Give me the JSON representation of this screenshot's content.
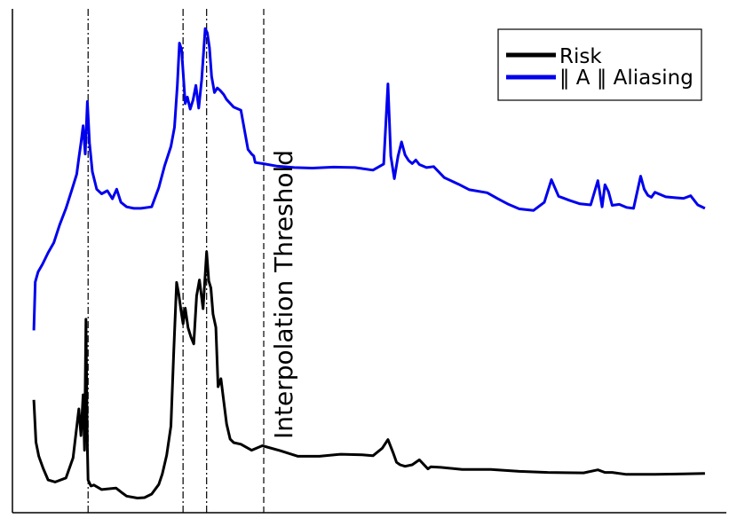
{
  "chart_data": {
    "type": "line",
    "title": "",
    "xlabel": "",
    "ylabel": "",
    "xlim": [
      0,
      100
    ],
    "ylim": [
      0,
      100
    ],
    "grid": false,
    "axes_visible": [
      "left",
      "bottom"
    ],
    "ticks_visible": false,
    "legend": {
      "placement": "top-right",
      "entries": [
        {
          "label": "Risk",
          "color": "#000000"
        },
        {
          "label": "‖ A ‖  Aliasing",
          "color": "#0000ee"
        }
      ]
    },
    "vlines": [
      {
        "x": 10.6,
        "style": "dashdot",
        "label": ""
      },
      {
        "x": 23.9,
        "style": "dashdot",
        "label": ""
      },
      {
        "x": 27.2,
        "style": "dashdot",
        "label": ""
      },
      {
        "x": 35.2,
        "style": "dashed",
        "label": "Interpolation Threshold"
      }
    ],
    "series": [
      {
        "name": "Risk",
        "color": "#000000",
        "x": [
          3.0,
          3.3,
          3.7,
          4.3,
          5.0,
          6.0,
          7.5,
          8.5,
          9.3,
          9.6,
          9.9,
          10.1,
          10.3,
          10.5,
          10.6,
          10.8,
          11.0,
          11.4,
          12.5,
          14.5,
          15.5,
          16.0,
          17.5,
          18.5,
          19.5,
          20.5,
          21.0,
          21.6,
          22.2,
          22.6,
          23.0,
          23.3,
          23.6,
          23.9,
          24.2,
          24.6,
          25.0,
          25.4,
          25.8,
          26.2,
          26.7,
          27.2,
          27.5,
          27.8,
          28.1,
          28.5,
          28.8,
          29.2,
          29.6,
          30.0,
          30.5,
          31.0,
          32.0,
          33.5,
          35.0,
          37.5,
          40.0,
          43.0,
          46.0,
          49.0,
          50.5,
          51.8,
          52.6,
          53.3,
          53.8,
          54.3,
          55.0,
          56.0,
          57.0,
          57.8,
          58.2,
          58.6,
          60.0,
          63.0,
          67.0,
          71.0,
          75.0,
          80.0,
          82.0,
          83.0,
          84.0,
          86.0,
          90.0,
          94.0,
          97.0
        ],
        "y": [
          22.4,
          14.0,
          11.2,
          8.8,
          6.5,
          6.1,
          6.9,
          10.9,
          20.6,
          15.3,
          23.4,
          12.4,
          38.4,
          13.0,
          6.5,
          5.9,
          5.3,
          5.5,
          4.6,
          4.9,
          3.8,
          3.3,
          2.9,
          3.0,
          3.7,
          5.6,
          7.7,
          11.4,
          17.2,
          32.1,
          45.7,
          43.4,
          40.3,
          37.5,
          40.6,
          36.7,
          34.9,
          33.5,
          43.0,
          46.2,
          40.5,
          51.8,
          46.0,
          44.6,
          39.4,
          36.8,
          25.0,
          26.6,
          22.1,
          17.6,
          14.6,
          13.9,
          13.6,
          12.4,
          13.3,
          12.3,
          11.2,
          11.2,
          11.6,
          11.5,
          11.3,
          12.8,
          14.5,
          12.0,
          10.0,
          9.5,
          9.2,
          9.5,
          10.5,
          9.3,
          8.7,
          9.1,
          9.0,
          8.6,
          8.6,
          8.2,
          8.0,
          7.9,
          8.5,
          8.0,
          8.0,
          7.6,
          7.6,
          7.7,
          7.8
        ]
      },
      {
        "name": "‖ A ‖  Aliasing",
        "color": "#0000ee",
        "x": [
          3.0,
          3.2,
          3.6,
          4.2,
          5.0,
          5.8,
          6.6,
          7.5,
          8.4,
          9.0,
          9.3,
          9.6,
          9.9,
          10.2,
          10.5,
          10.8,
          11.2,
          11.8,
          12.5,
          13.3,
          14.0,
          14.6,
          15.2,
          16.0,
          17.0,
          18.0,
          19.5,
          20.5,
          21.3,
          22.2,
          22.7,
          23.1,
          23.4,
          23.7,
          23.9,
          24.2,
          24.5,
          24.9,
          25.3,
          25.7,
          26.1,
          26.5,
          27.0,
          27.3,
          27.6,
          27.9,
          28.3,
          28.7,
          29.1,
          29.6,
          30.0,
          31.0,
          32.0,
          33.0,
          33.5,
          33.8,
          34.0,
          35.0,
          37.0,
          39.5,
          42.0,
          45.0,
          48.0,
          50.5,
          52.0,
          52.6,
          53.0,
          53.5,
          54.0,
          54.5,
          55.0,
          55.5,
          56.0,
          56.5,
          57.0,
          58.0,
          59.0,
          60.5,
          62.5,
          64.0,
          66.5,
          68.0,
          69.5,
          71.0,
          73.0,
          74.5,
          75.5,
          76.5,
          78.0,
          79.5,
          81.0,
          82.0,
          82.6,
          83.0,
          83.5,
          84.0,
          85.0,
          86.0,
          87.0,
          88.0,
          88.5,
          89.0,
          89.5,
          90.0,
          91.5,
          93.0,
          94.0,
          95.0,
          96.0,
          97.0
        ],
        "y": [
          36.2,
          45.8,
          47.8,
          49.3,
          51.6,
          53.6,
          57.1,
          60.4,
          64.4,
          67.2,
          70.4,
          73.4,
          76.8,
          71.2,
          81.6,
          73.4,
          67.7,
          64.2,
          63.3,
          63.9,
          62.3,
          64.2,
          61.6,
          60.7,
          60.4,
          60.4,
          60.7,
          64.5,
          68.8,
          72.7,
          76.5,
          84.8,
          93.2,
          91.9,
          87.5,
          81.2,
          82.5,
          80.1,
          81.9,
          84.8,
          80.3,
          85.9,
          96.1,
          95.2,
          92.3,
          86.6,
          83.4,
          84.3,
          83.8,
          83.0,
          82.0,
          80.5,
          79.9,
          72.1,
          71.2,
          70.8,
          69.5,
          69.3,
          68.8,
          68.5,
          68.4,
          68.6,
          68.5,
          68.0,
          69.2,
          85.1,
          70.8,
          66.3,
          70.7,
          73.6,
          71.0,
          69.9,
          69.3,
          70.0,
          69.1,
          68.5,
          68.7,
          66.5,
          65.2,
          64.1,
          63.5,
          62.3,
          61.2,
          60.3,
          60.0,
          61.6,
          66.1,
          62.8,
          62.0,
          61.3,
          61.1,
          65.9,
          60.7,
          65.1,
          63.7,
          61.0,
          61.2,
          60.6,
          60.4,
          66.8,
          64.2,
          63.0,
          62.6,
          63.6,
          62.7,
          62.5,
          62.4,
          62.9,
          61.1,
          60.4
        ]
      }
    ]
  }
}
